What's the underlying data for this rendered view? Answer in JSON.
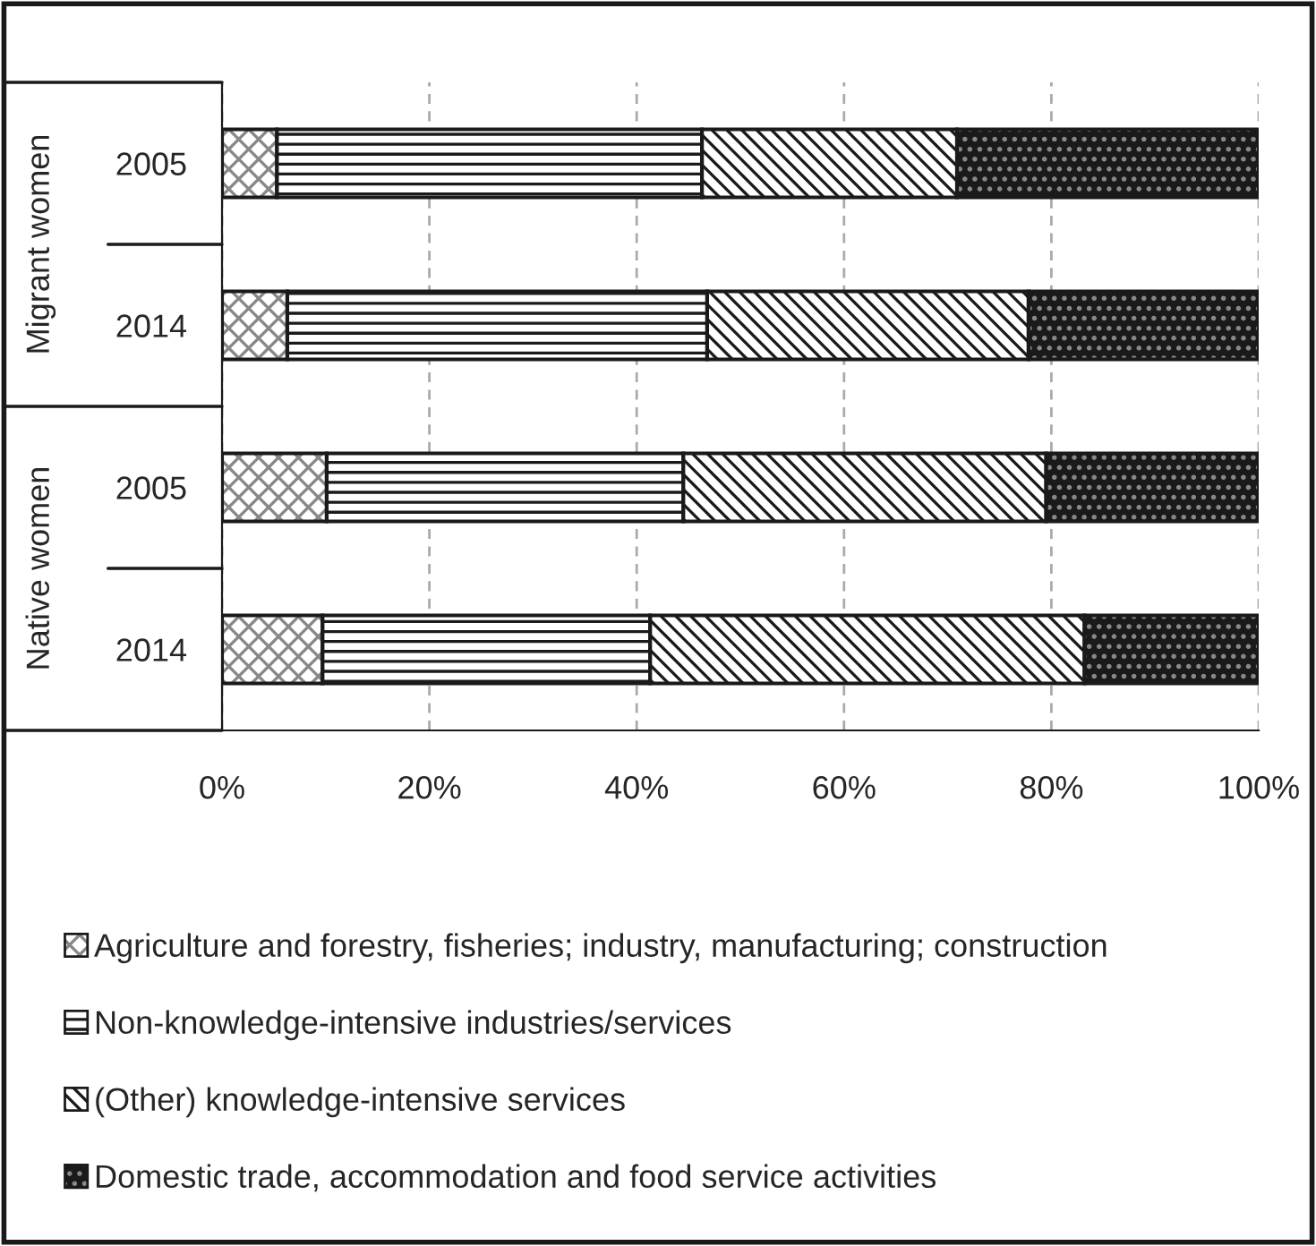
{
  "chart_data": {
    "type": "bar",
    "orientation": "horizontal",
    "stacked": true,
    "categories": [
      "2005",
      "2014",
      "2005",
      "2014"
    ],
    "series": [
      {
        "name": "Agriculture and forestry, fisheries; industry, manufacturing; construction",
        "color": "#1a1a1a",
        "values": [
          5.3,
          6.3,
          10.1,
          9.7
        ]
      },
      {
        "name": "Non-knowledge-intensive industries/services",
        "color": "#1a1a1a",
        "values": [
          41.0,
          40.5,
          34.4,
          31.6
        ]
      },
      {
        "name": "(Other) knowledge-intensive services",
        "color": "#1a1a1a",
        "values": [
          24.6,
          31.0,
          35.0,
          41.9
        ]
      },
      {
        "name": "Domestic trade, accommodation and food service activities",
        "color": "#1a1a1a",
        "values": [
          29.1,
          22.2,
          20.5,
          16.8
        ]
      }
    ],
    "xlim": [
      0,
      100
    ],
    "xticks": [
      {
        "value": 0,
        "label": "0%"
      },
      {
        "value": 20,
        "label": "20%"
      },
      {
        "value": 40,
        "label": "40%"
      },
      {
        "value": 60,
        "label": "60%"
      },
      {
        "value": 80,
        "label": "80%"
      },
      {
        "value": 100,
        "label": "100%"
      }
    ],
    "annotations": [
      "Migrant women",
      "Native women"
    ],
    "grid": "x",
    "legend": "bottom"
  }
}
